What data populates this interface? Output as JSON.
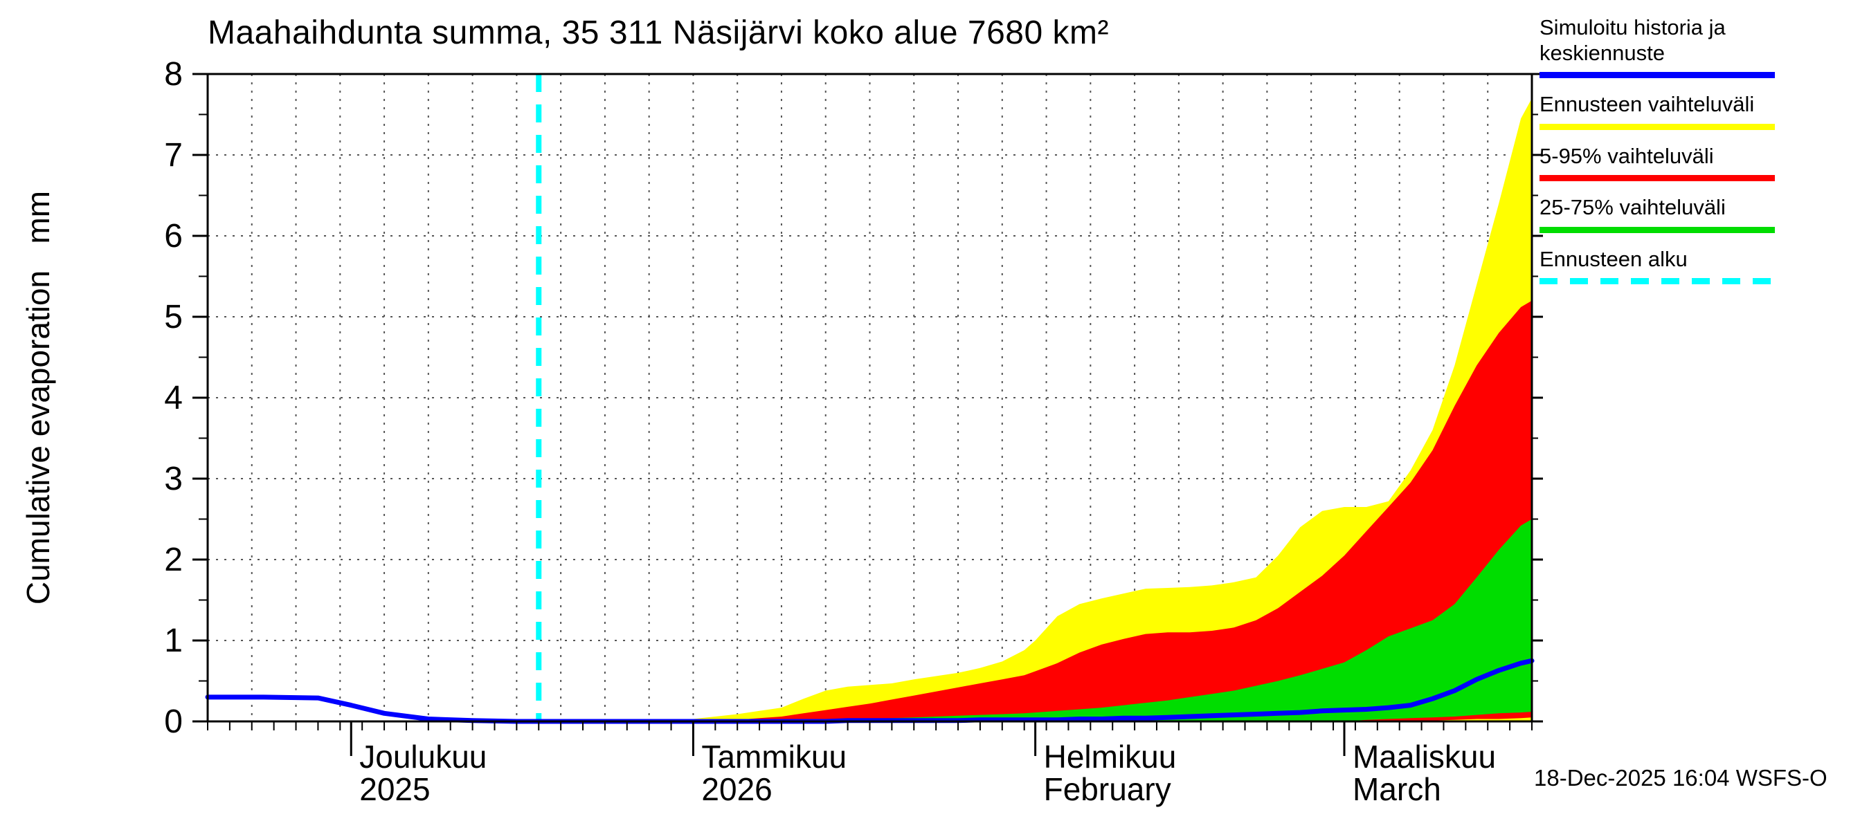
{
  "title": "Maahaihdunta summa, 35 311 Näsijärvi koko alue 7680 km²",
  "ylabel": "Cumulative evaporation   mm",
  "timestamp": "18-Dec-2025 16:04 WSFS-O",
  "colors": {
    "history_median": "#0000ff",
    "full_range": "#ffff00",
    "range_5_95": "#ff0000",
    "range_25_75": "#00dd00",
    "forecast_start": "#00ffff",
    "grid": "#555555",
    "axis": "#000000",
    "background": "#ffffff"
  },
  "legend": [
    {
      "label": "Simuloitu historia ja keskiennuste",
      "color": "#0000ff",
      "style": "solid"
    },
    {
      "label": "Ennusteen vaihteluväli",
      "color": "#ffff00",
      "style": "solid"
    },
    {
      "label": "5-95% vaihteluväli",
      "color": "#ff0000",
      "style": "solid"
    },
    {
      "label": "25-75% vaihteluväli",
      "color": "#00dd00",
      "style": "solid"
    },
    {
      "label": "Ennusteen alku",
      "color": "#00ffff",
      "style": "dashed"
    }
  ],
  "chart_data": {
    "type": "area",
    "title": "Maahaihdunta summa, 35 311 Näsijärvi koko alue 7680 km²",
    "ylabel": "Cumulative evaporation mm",
    "ylim": [
      0,
      8
    ],
    "y_ticks": [
      0,
      1,
      2,
      3,
      4,
      5,
      6,
      7,
      8
    ],
    "y_minor_step": 0.5,
    "x_unit": "days (day 0 = left edge, ~18 Nov 2025)",
    "x_range": [
      0,
      120
    ],
    "forecast_start_day": 30,
    "grid": "dotted",
    "legend_position": "outside-top-right",
    "months": [
      {
        "label1": "Joulukuu",
        "label2": "2025",
        "start_day": 13
      },
      {
        "label1": "Tammikuu",
        "label2": "2026",
        "start_day": 44
      },
      {
        "label1": "Helmikuu",
        "label2": "February",
        "start_day": 75
      },
      {
        "label1": "Maaliskuu",
        "label2": "March",
        "start_day": 103
      }
    ],
    "band_floor": 0,
    "days": [
      0,
      5,
      10,
      13,
      16,
      20,
      24,
      28,
      30,
      34,
      38,
      42,
      44,
      46,
      48,
      50,
      52,
      54,
      56,
      58,
      60,
      62,
      64,
      66,
      68,
      70,
      72,
      74,
      75,
      77,
      79,
      81,
      83,
      85,
      87,
      89,
      91,
      93,
      95,
      97,
      99,
      101,
      103,
      105,
      107,
      109,
      111,
      113,
      115,
      117,
      119,
      120
    ],
    "series": {
      "median_and_history": [
        0.3,
        0.3,
        0.29,
        0.2,
        0.1,
        0.03,
        0.01,
        0.0,
        0.0,
        0.0,
        0.0,
        0.0,
        0.0,
        0.0,
        0.0,
        0.0,
        0.0,
        0.0,
        0.0,
        0.01,
        0.01,
        0.01,
        0.01,
        0.01,
        0.01,
        0.02,
        0.02,
        0.02,
        0.02,
        0.02,
        0.03,
        0.03,
        0.04,
        0.04,
        0.05,
        0.06,
        0.07,
        0.08,
        0.09,
        0.1,
        0.11,
        0.13,
        0.14,
        0.15,
        0.17,
        0.2,
        0.28,
        0.38,
        0.52,
        0.63,
        0.72,
        0.75
      ],
      "range_max": [
        0,
        0,
        0,
        0,
        0,
        0,
        0,
        0,
        0,
        0.01,
        0.01,
        0.02,
        0.03,
        0.06,
        0.09,
        0.13,
        0.17,
        0.28,
        0.38,
        0.43,
        0.45,
        0.47,
        0.52,
        0.56,
        0.6,
        0.66,
        0.74,
        0.88,
        1.0,
        1.3,
        1.45,
        1.52,
        1.58,
        1.64,
        1.65,
        1.66,
        1.68,
        1.72,
        1.78,
        2.05,
        2.4,
        2.6,
        2.65,
        2.65,
        2.72,
        3.1,
        3.6,
        4.4,
        5.4,
        6.4,
        7.45,
        7.7
      ],
      "p95": [
        0,
        0,
        0,
        0,
        0,
        0,
        0,
        0,
        0,
        0,
        0,
        0,
        0.01,
        0.01,
        0.02,
        0.04,
        0.06,
        0.1,
        0.14,
        0.18,
        0.22,
        0.27,
        0.32,
        0.37,
        0.42,
        0.47,
        0.52,
        0.57,
        0.62,
        0.72,
        0.85,
        0.95,
        1.02,
        1.08,
        1.1,
        1.1,
        1.12,
        1.16,
        1.25,
        1.4,
        1.6,
        1.8,
        2.05,
        2.35,
        2.65,
        2.95,
        3.35,
        3.9,
        4.4,
        4.8,
        5.12,
        5.2
      ],
      "p75": [
        0,
        0,
        0,
        0,
        0,
        0,
        0,
        0,
        0,
        0,
        0,
        0,
        0.0,
        0.0,
        0.01,
        0.01,
        0.01,
        0.02,
        0.02,
        0.03,
        0.03,
        0.04,
        0.05,
        0.06,
        0.07,
        0.08,
        0.09,
        0.1,
        0.11,
        0.13,
        0.15,
        0.17,
        0.2,
        0.23,
        0.26,
        0.3,
        0.34,
        0.38,
        0.44,
        0.5,
        0.57,
        0.65,
        0.73,
        0.88,
        1.05,
        1.15,
        1.25,
        1.45,
        1.78,
        2.12,
        2.42,
        2.5
      ],
      "p25": [
        0,
        0,
        0,
        0,
        0,
        0,
        0,
        0,
        0,
        0,
        0,
        0,
        0,
        0,
        0,
        0,
        0,
        0,
        0,
        0,
        0,
        0,
        0,
        0,
        0,
        0,
        0,
        0,
        0,
        0,
        0,
        0,
        0,
        0,
        0,
        0,
        0,
        0,
        0,
        0,
        0,
        0,
        0,
        0.02,
        0.03,
        0.04,
        0.05,
        0.06,
        0.08,
        0.1,
        0.11,
        0.12
      ],
      "p05": [
        0,
        0,
        0,
        0,
        0,
        0,
        0,
        0,
        0,
        0,
        0,
        0,
        0,
        0,
        0,
        0,
        0,
        0,
        0,
        0,
        0,
        0,
        0,
        0,
        0,
        0,
        0,
        0,
        0,
        0,
        0,
        0,
        0,
        0,
        0,
        0,
        0,
        0,
        0,
        0,
        0,
        0,
        0,
        0,
        0,
        0,
        0.01,
        0.02,
        0.03,
        0.03,
        0.04,
        0.05
      ]
    }
  }
}
